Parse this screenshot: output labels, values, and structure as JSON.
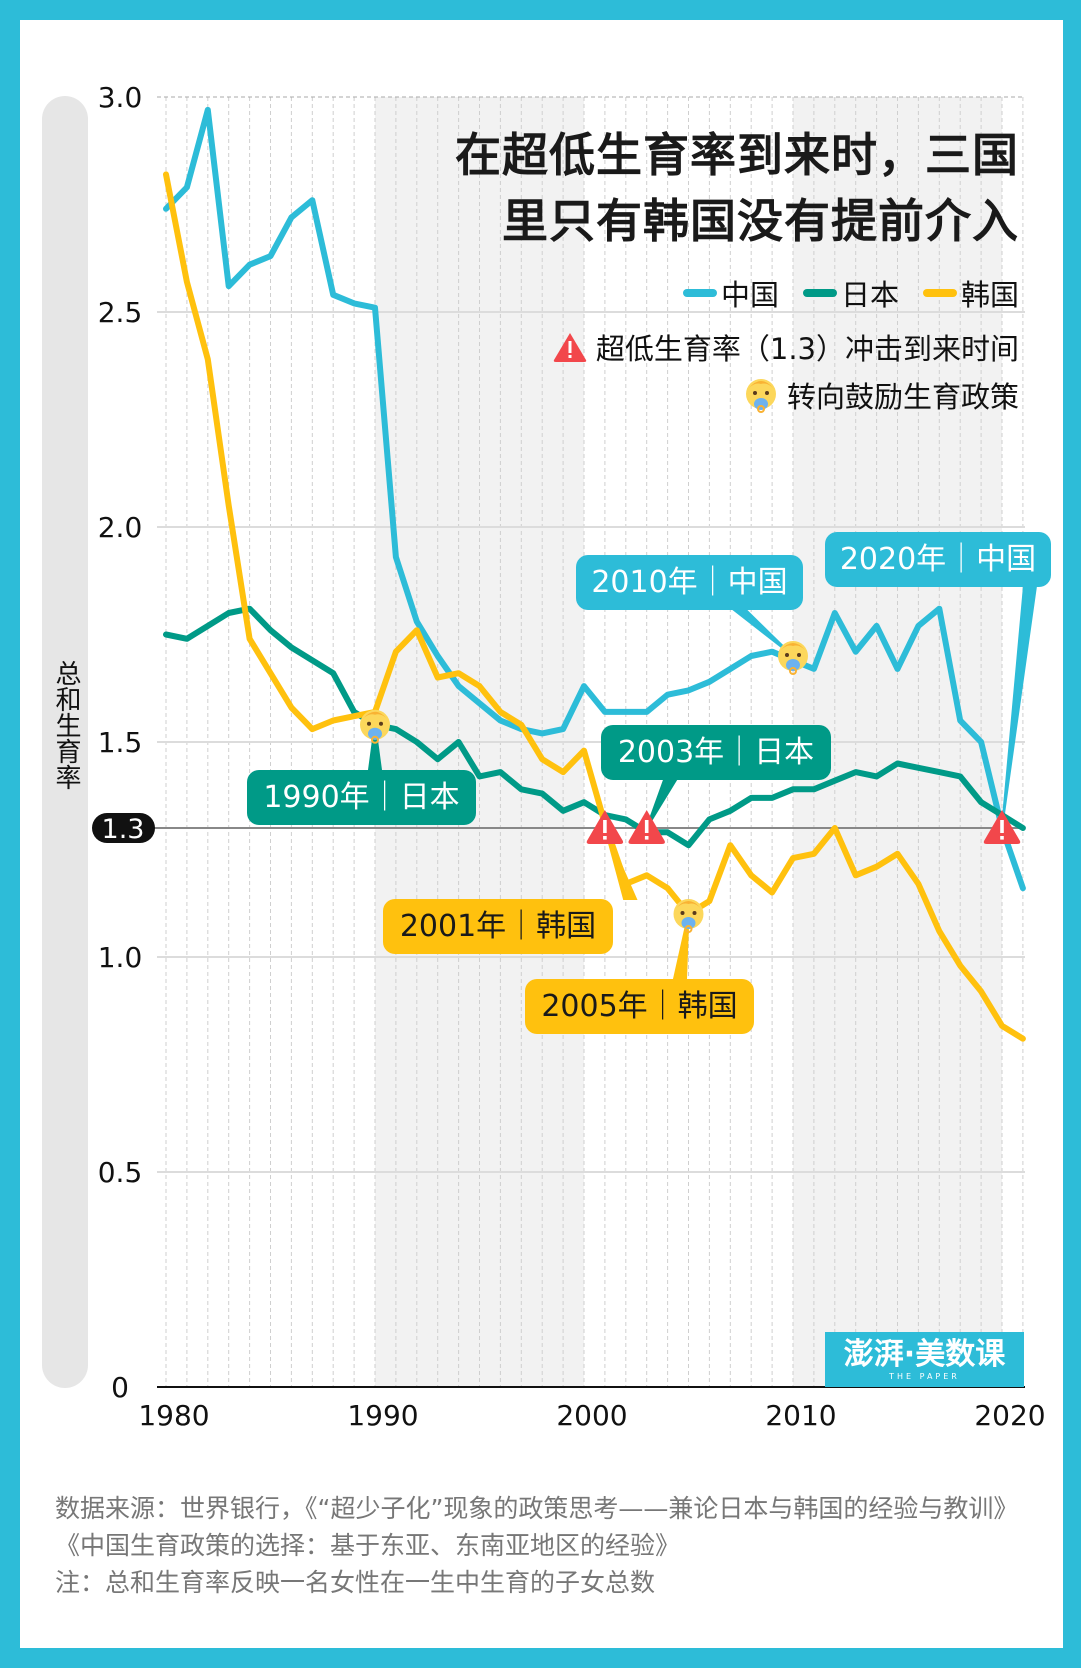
{
  "title": {
    "line1": "在超低生育率到来时，三国",
    "line2": "里只有韩国没有提前介入"
  },
  "legend": {
    "series": [
      {
        "label": "中国",
        "color": "#2dbcd8"
      },
      {
        "label": "日本",
        "color": "#009a87"
      },
      {
        "label": "韩国",
        "color": "#ffc10e"
      }
    ],
    "warning_label": "超低生育率（1.3）冲击到来时间",
    "baby_label": "转向鼓励生育政策"
  },
  "callouts": {
    "china_2010": "2010年｜中国",
    "china_2020": "2020年｜中国",
    "japan_1990": "1990年｜日本",
    "japan_2003": "2003年｜日本",
    "korea_2001": "2001年｜韩国",
    "korea_2005": "2005年｜韩国"
  },
  "logo": {
    "text": "澎湃·美数课",
    "sub": "THE PAPER"
  },
  "footer": {
    "source": "数据来源：世界银行，《“超少子化”现象的政策思考——兼论日本与韩国的经验与教训》《中国生育政策的选择：基于东亚、东南亚地区的经验》",
    "note": "注：总和生育率反映一名女性在一生中生育的子女总数"
  },
  "chart_data": {
    "type": "line",
    "ylabel": "总和生育率",
    "xlim": [
      1980,
      2021
    ],
    "ylim": [
      0,
      3.0
    ],
    "x_ticks": [
      "1980",
      "1990",
      "2000",
      "2010",
      "2020"
    ],
    "y_ticks": [
      "0",
      "0.5",
      "1.0",
      "1.5",
      "2.0",
      "2.5",
      "3.0"
    ],
    "reference_line": {
      "value": 1.3,
      "label": "1.3"
    },
    "shaded_periods": [
      [
        1990,
        2000
      ],
      [
        2010,
        2020
      ]
    ],
    "grid": true,
    "legend_position": "top-right",
    "x": [
      1980,
      1981,
      1982,
      1983,
      1984,
      1985,
      1986,
      1987,
      1988,
      1989,
      1990,
      1991,
      1992,
      1993,
      1994,
      1995,
      1996,
      1997,
      1998,
      1999,
      2000,
      2001,
      2002,
      2003,
      2004,
      2005,
      2006,
      2007,
      2008,
      2009,
      2010,
      2011,
      2012,
      2013,
      2014,
      2015,
      2016,
      2017,
      2018,
      2019,
      2020,
      2021
    ],
    "series": [
      {
        "name": "中国",
        "color": "#2dbcd8",
        "values": [
          2.74,
          2.79,
          2.97,
          2.56,
          2.61,
          2.63,
          2.72,
          2.76,
          2.54,
          2.52,
          2.51,
          1.93,
          1.78,
          1.7,
          1.63,
          1.59,
          1.55,
          1.53,
          1.52,
          1.53,
          1.63,
          1.57,
          1.57,
          1.57,
          1.61,
          1.62,
          1.64,
          1.67,
          1.7,
          1.71,
          1.69,
          1.67,
          1.8,
          1.71,
          1.77,
          1.67,
          1.77,
          1.81,
          1.55,
          1.5,
          1.3,
          1.16
        ]
      },
      {
        "name": "日本",
        "color": "#009a87",
        "values": [
          1.75,
          1.74,
          1.77,
          1.8,
          1.81,
          1.76,
          1.72,
          1.69,
          1.66,
          1.57,
          1.54,
          1.53,
          1.5,
          1.46,
          1.5,
          1.42,
          1.43,
          1.39,
          1.38,
          1.34,
          1.36,
          1.33,
          1.32,
          1.29,
          1.29,
          1.26,
          1.32,
          1.34,
          1.37,
          1.37,
          1.39,
          1.39,
          1.41,
          1.43,
          1.42,
          1.45,
          1.44,
          1.43,
          1.42,
          1.36,
          1.33,
          1.3
        ]
      },
      {
        "name": "韩国",
        "color": "#ffc10e",
        "values": [
          2.82,
          2.57,
          2.39,
          2.05,
          1.74,
          1.66,
          1.58,
          1.53,
          1.55,
          1.56,
          1.57,
          1.71,
          1.76,
          1.65,
          1.66,
          1.63,
          1.57,
          1.54,
          1.46,
          1.43,
          1.48,
          1.31,
          1.17,
          1.19,
          1.16,
          1.1,
          1.13,
          1.26,
          1.19,
          1.15,
          1.23,
          1.24,
          1.3,
          1.19,
          1.21,
          1.24,
          1.17,
          1.06,
          0.98,
          0.92,
          0.84,
          0.81
        ]
      }
    ],
    "annotations": [
      {
        "type": "warning",
        "series": "韩国",
        "year": 2001,
        "value": 1.3,
        "label_key": "korea_2001"
      },
      {
        "type": "warning",
        "series": "日本",
        "year": 2003,
        "value": 1.3,
        "label_key": "japan_2003"
      },
      {
        "type": "warning",
        "series": "中国",
        "year": 2020,
        "value": 1.3,
        "label_key": "china_2020"
      },
      {
        "type": "baby",
        "series": "日本",
        "year": 1990,
        "value": 1.54,
        "label_key": "japan_1990"
      },
      {
        "type": "baby",
        "series": "韩国",
        "year": 2005,
        "value": 1.1,
        "label_key": "korea_2005"
      },
      {
        "type": "baby",
        "series": "中国",
        "year": 2010,
        "value": 1.7,
        "label_key": "china_2010"
      }
    ]
  }
}
